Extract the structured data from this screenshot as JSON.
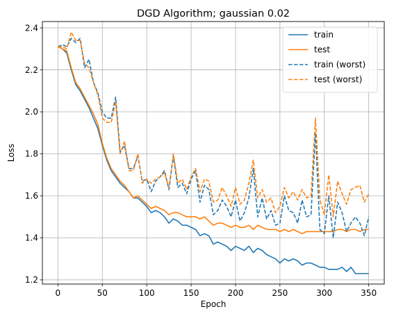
{
  "chart_data": {
    "type": "line",
    "title": "DGD Algorithm; gaussian 0.02",
    "xlabel": "Epoch",
    "ylabel": "Loss",
    "xlim": [
      -17.5,
      367.5
    ],
    "ylim": [
      1.18,
      2.43
    ],
    "xticks": [
      0,
      50,
      100,
      150,
      200,
      250,
      300,
      350
    ],
    "yticks": [
      1.2,
      1.4,
      1.6,
      1.8,
      2.0,
      2.2,
      2.4
    ],
    "xtick_labels": [
      "0",
      "50",
      "100",
      "150",
      "200",
      "250",
      "300",
      "350"
    ],
    "ytick_labels": [
      "1.2",
      "1.4",
      "1.6",
      "1.8",
      "2.0",
      "2.2",
      "2.4"
    ],
    "grid": true,
    "legend_position": "top-right",
    "x": [
      0,
      5,
      10,
      15,
      20,
      25,
      30,
      35,
      40,
      45,
      50,
      55,
      60,
      65,
      70,
      75,
      80,
      85,
      90,
      95,
      100,
      105,
      110,
      115,
      120,
      125,
      130,
      135,
      140,
      145,
      150,
      155,
      160,
      165,
      170,
      175,
      180,
      185,
      190,
      195,
      200,
      205,
      210,
      215,
      220,
      225,
      230,
      235,
      240,
      245,
      250,
      255,
      260,
      265,
      270,
      275,
      280,
      285,
      290,
      295,
      300,
      305,
      310,
      315,
      320,
      325,
      330,
      335,
      340,
      345,
      350
    ],
    "series": [
      {
        "name": "train",
        "color": "#1f77b4",
        "style": "solid",
        "values": [
          2.31,
          2.3,
          2.28,
          2.2,
          2.13,
          2.1,
          2.06,
          2.02,
          1.97,
          1.92,
          1.84,
          1.77,
          1.72,
          1.69,
          1.66,
          1.64,
          1.62,
          1.59,
          1.59,
          1.57,
          1.55,
          1.52,
          1.53,
          1.52,
          1.5,
          1.47,
          1.49,
          1.48,
          1.46,
          1.46,
          1.45,
          1.44,
          1.41,
          1.42,
          1.41,
          1.37,
          1.38,
          1.37,
          1.36,
          1.34,
          1.36,
          1.35,
          1.34,
          1.36,
          1.33,
          1.35,
          1.34,
          1.32,
          1.31,
          1.3,
          1.28,
          1.3,
          1.29,
          1.3,
          1.29,
          1.27,
          1.28,
          1.28,
          1.27,
          1.26,
          1.26,
          1.25,
          1.25,
          1.25,
          1.26,
          1.24,
          1.26,
          1.23,
          1.23,
          1.23,
          1.23
        ]
      },
      {
        "name": "test",
        "color": "#ff7f0e",
        "style": "solid",
        "values": [
          2.31,
          2.3,
          2.29,
          2.21,
          2.14,
          2.11,
          2.07,
          2.03,
          1.99,
          1.94,
          1.85,
          1.78,
          1.73,
          1.7,
          1.67,
          1.65,
          1.62,
          1.59,
          1.6,
          1.58,
          1.56,
          1.54,
          1.55,
          1.54,
          1.53,
          1.51,
          1.52,
          1.52,
          1.51,
          1.5,
          1.5,
          1.5,
          1.49,
          1.5,
          1.48,
          1.46,
          1.47,
          1.47,
          1.46,
          1.45,
          1.46,
          1.45,
          1.45,
          1.46,
          1.44,
          1.46,
          1.45,
          1.44,
          1.44,
          1.44,
          1.43,
          1.44,
          1.43,
          1.44,
          1.43,
          1.42,
          1.43,
          1.43,
          1.43,
          1.43,
          1.43,
          1.43,
          1.43,
          1.44,
          1.44,
          1.43,
          1.44,
          1.44,
          1.43,
          1.44,
          1.44
        ]
      },
      {
        "name": "train (worst)",
        "color": "#1f77b4",
        "style": "dashed",
        "values": [
          2.31,
          2.32,
          2.31,
          2.35,
          2.33,
          2.35,
          2.21,
          2.25,
          2.14,
          2.09,
          2.0,
          1.97,
          1.97,
          2.07,
          1.81,
          1.84,
          1.73,
          1.73,
          1.79,
          1.67,
          1.68,
          1.62,
          1.67,
          1.69,
          1.72,
          1.63,
          1.79,
          1.64,
          1.66,
          1.61,
          1.68,
          1.72,
          1.57,
          1.65,
          1.63,
          1.51,
          1.53,
          1.58,
          1.55,
          1.5,
          1.58,
          1.48,
          1.52,
          1.59,
          1.73,
          1.5,
          1.59,
          1.49,
          1.53,
          1.46,
          1.47,
          1.6,
          1.53,
          1.52,
          1.47,
          1.58,
          1.5,
          1.51,
          1.9,
          1.44,
          1.42,
          1.6,
          1.4,
          1.57,
          1.52,
          1.43,
          1.47,
          1.5,
          1.47,
          1.41,
          1.5
        ]
      },
      {
        "name": "test (worst)",
        "color": "#ff7f0e",
        "style": "dashed",
        "values": [
          2.31,
          2.31,
          2.3,
          2.38,
          2.34,
          2.34,
          2.23,
          2.21,
          2.14,
          2.08,
          1.97,
          1.95,
          1.95,
          2.05,
          1.8,
          1.86,
          1.72,
          1.72,
          1.8,
          1.66,
          1.68,
          1.66,
          1.68,
          1.69,
          1.71,
          1.64,
          1.8,
          1.66,
          1.68,
          1.63,
          1.69,
          1.73,
          1.62,
          1.68,
          1.67,
          1.57,
          1.58,
          1.64,
          1.6,
          1.55,
          1.64,
          1.56,
          1.58,
          1.66,
          1.77,
          1.59,
          1.63,
          1.57,
          1.59,
          1.52,
          1.55,
          1.64,
          1.59,
          1.62,
          1.58,
          1.63,
          1.59,
          1.6,
          1.97,
          1.58,
          1.51,
          1.7,
          1.5,
          1.67,
          1.61,
          1.56,
          1.63,
          1.64,
          1.65,
          1.57,
          1.61
        ]
      }
    ]
  }
}
